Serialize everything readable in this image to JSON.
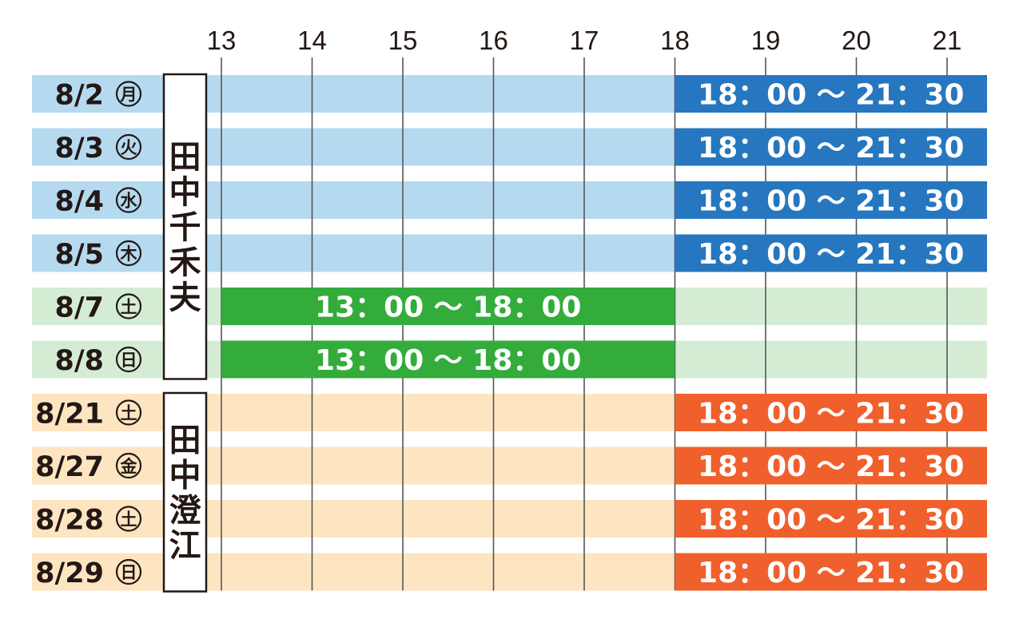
{
  "chart_data": {
    "type": "bar",
    "orientation": "horizontal",
    "x_ticks": [
      13,
      14,
      15,
      16,
      17,
      18,
      19,
      20,
      21
    ],
    "xlim": [
      12.8,
      21.5
    ],
    "grid": true,
    "groups": [
      {
        "name": "田中千禾夫",
        "colors": {
          "row": "#b5daf0",
          "bar": "#2677bf"
        },
        "rows": [
          {
            "date": "8/2",
            "day": "月",
            "start": 18,
            "end": 21.5,
            "label": "18：00 ～ 21：30"
          },
          {
            "date": "8/3",
            "day": "火",
            "start": 18,
            "end": 21.5,
            "label": "18：00 ～ 21：30"
          },
          {
            "date": "8/4",
            "day": "水",
            "start": 18,
            "end": 21.5,
            "label": "18：00 ～ 21：30"
          },
          {
            "date": "8/5",
            "day": "木",
            "start": 18,
            "end": 21.5,
            "label": "18：00 ～ 21：30"
          }
        ]
      },
      {
        "name": "",
        "colors": {
          "row": "#d4ecd4",
          "bar": "#33ac3c"
        },
        "rows": [
          {
            "date": "8/7",
            "day": "土",
            "start": 13,
            "end": 18,
            "label": "13：00 ～ 18：00"
          },
          {
            "date": "8/8",
            "day": "日",
            "start": 13,
            "end": 18,
            "label": "13：00 ～ 18：00"
          }
        ]
      },
      {
        "name": "田中澄江",
        "colors": {
          "row": "#fde5c2",
          "bar": "#f0602c"
        },
        "rows": [
          {
            "date": "8/21",
            "day": "土",
            "start": 18,
            "end": 21.5,
            "label": "18：00 ～ 21：30"
          },
          {
            "date": "8/27",
            "day": "金",
            "start": 18,
            "end": 21.5,
            "label": "18：00 ～ 21：30"
          },
          {
            "date": "8/28",
            "day": "土",
            "start": 18,
            "end": 21.5,
            "label": "18：00 ～ 21：30"
          },
          {
            "date": "8/29",
            "day": "日",
            "start": 18,
            "end": 21.5,
            "label": "18：00 ～ 21：30"
          }
        ]
      }
    ]
  }
}
